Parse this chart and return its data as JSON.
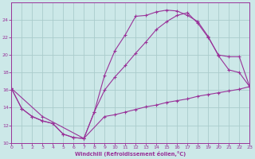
{
  "xlabel": "Windchill (Refroidissement éolien,°C)",
  "bg_color": "#cce8e8",
  "grid_color": "#aacccc",
  "line_color": "#993399",
  "xlim": [
    0,
    23
  ],
  "ylim": [
    10,
    26
  ],
  "xticks": [
    0,
    1,
    2,
    3,
    4,
    5,
    6,
    7,
    8,
    9,
    10,
    11,
    12,
    13,
    14,
    15,
    16,
    17,
    18,
    19,
    20,
    21,
    22,
    23
  ],
  "yticks": [
    10,
    12,
    14,
    16,
    18,
    20,
    22,
    24
  ],
  "curve1_x": [
    0,
    1,
    2,
    3,
    4,
    5,
    6,
    7,
    8,
    9,
    10,
    11,
    12,
    13,
    14,
    15,
    16,
    17,
    18,
    19,
    20,
    21,
    22,
    23
  ],
  "curve1_y": [
    16.2,
    13.9,
    13.0,
    12.5,
    12.2,
    11.0,
    10.6,
    10.5,
    13.5,
    17.7,
    20.5,
    22.3,
    24.4,
    24.5,
    24.9,
    25.1,
    25.0,
    24.5,
    23.8,
    22.1,
    19.9,
    18.3,
    18.0,
    16.4
  ],
  "curve2_x": [
    0,
    3,
    7,
    8,
    9,
    10,
    11,
    12,
    13,
    14,
    15,
    16,
    17,
    18,
    19,
    20,
    21,
    22,
    23
  ],
  "curve2_y": [
    16.2,
    13.0,
    10.5,
    13.5,
    16.0,
    17.5,
    18.8,
    20.2,
    21.5,
    22.9,
    23.8,
    24.5,
    24.8,
    23.6,
    22.0,
    20.0,
    19.8,
    19.8,
    16.4
  ],
  "curve3_x": [
    0,
    1,
    2,
    3,
    4,
    5,
    6,
    7,
    9,
    10,
    11,
    12,
    13,
    14,
    15,
    16,
    17,
    18,
    19,
    20,
    21,
    22,
    23
  ],
  "curve3_y": [
    16.2,
    13.9,
    13.0,
    12.5,
    12.2,
    11.0,
    10.6,
    10.5,
    13.0,
    13.2,
    13.5,
    13.8,
    14.1,
    14.3,
    14.6,
    14.8,
    15.0,
    15.3,
    15.5,
    15.7,
    15.9,
    16.1,
    16.4
  ]
}
